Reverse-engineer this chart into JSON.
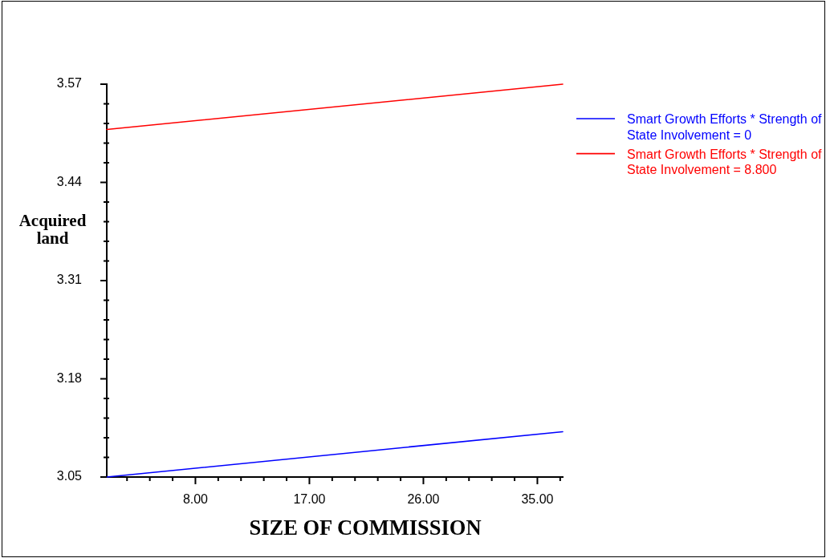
{
  "chart_data": {
    "type": "line",
    "xlabel": "SIZE OF COMMISSION",
    "ylabel": "Acquired land",
    "x": [
      1,
      37
    ],
    "series": [
      {
        "name": "Smart Growth Efforts * Strength of State Involvement = 0",
        "color": "#0000ff",
        "values": [
          3.05,
          3.11
        ]
      },
      {
        "name": "Smart Growth Efforts * Strength of State Involvement = 8.800",
        "color": "#ff0000",
        "values": [
          3.51,
          3.57
        ]
      }
    ],
    "xlim": [
      1,
      37
    ],
    "xticks": [
      {
        "value": 2.6,
        "label": null
      },
      {
        "value": 4.4,
        "label": null
      },
      {
        "value": 6.2,
        "label": null
      },
      {
        "value": 8,
        "label": "8.00"
      },
      {
        "value": 9.8,
        "label": null
      },
      {
        "value": 11.6,
        "label": null
      },
      {
        "value": 13.4,
        "label": null
      },
      {
        "value": 15.2,
        "label": null
      },
      {
        "value": 17,
        "label": "17.00"
      },
      {
        "value": 18.8,
        "label": null
      },
      {
        "value": 20.6,
        "label": null
      },
      {
        "value": 22.4,
        "label": null
      },
      {
        "value": 24.2,
        "label": null
      },
      {
        "value": 26,
        "label": "26.00"
      },
      {
        "value": 27.8,
        "label": null
      },
      {
        "value": 29.6,
        "label": null
      },
      {
        "value": 31.4,
        "label": null
      },
      {
        "value": 33.2,
        "label": null
      },
      {
        "value": 35,
        "label": "35.00"
      },
      {
        "value": 36.8,
        "label": null
      }
    ],
    "ylim": [
      3.05,
      3.57
    ],
    "yticks": [
      3.05,
      {
        "value": 3.076,
        "label": null
      },
      {
        "value": 3.102,
        "label": null
      },
      {
        "value": 3.128,
        "label": null
      },
      {
        "value": 3.154,
        "label": null
      },
      3.18,
      {
        "value": 3.206,
        "label": null
      },
      {
        "value": 3.232,
        "label": null
      },
      {
        "value": 3.258,
        "label": null
      },
      {
        "value": 3.284,
        "label": null
      },
      3.31,
      {
        "value": 3.336,
        "label": null
      },
      {
        "value": 3.362,
        "label": null
      },
      {
        "value": 3.388,
        "label": null
      },
      {
        "value": 3.414,
        "label": null
      },
      3.44,
      {
        "value": 3.466,
        "label": null
      },
      {
        "value": 3.492,
        "label": null
      },
      {
        "value": 3.518,
        "label": null
      },
      {
        "value": 3.544,
        "label": null
      },
      3.57
    ],
    "legend": "right",
    "marker": "none",
    "line_style": "solid"
  }
}
